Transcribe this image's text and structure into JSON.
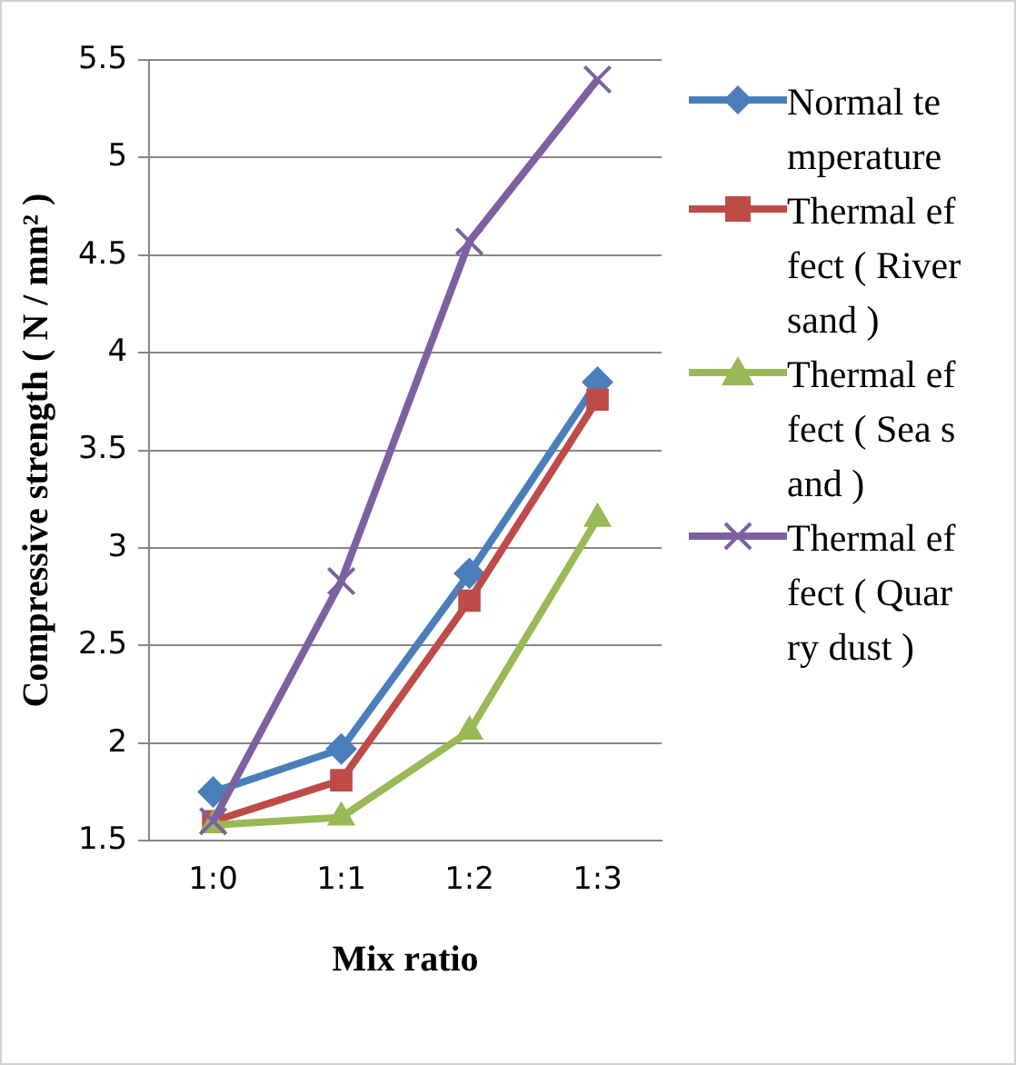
{
  "chart_data": {
    "type": "line",
    "xlabel": "Mix ratio",
    "ylabel": "Compressive strength ( N / mm² )",
    "categories": [
      "1:0",
      "1:1",
      "1:2",
      "1:3"
    ],
    "ylim": [
      1.5,
      5.5
    ],
    "yticks": [
      1.5,
      2,
      2.5,
      3,
      3.5,
      4,
      4.5,
      5,
      5.5
    ],
    "grid": "y",
    "legend": "right",
    "line_style": "solid",
    "series": [
      {
        "name": "Normal temperature",
        "color": "#4a7ebb",
        "marker": "diamond",
        "values": [
          1.75,
          1.97,
          2.87,
          3.85
        ]
      },
      {
        "name": "Thermal effect ( River sand )",
        "color": "#be4b48",
        "marker": "square",
        "values": [
          1.6,
          1.81,
          2.73,
          3.76
        ]
      },
      {
        "name": "Thermal effect ( Sea sand )",
        "color": "#98b954",
        "marker": "triangle",
        "values": [
          1.58,
          1.62,
          2.06,
          3.15
        ]
      },
      {
        "name": "Thermal effect ( Quarry dust )",
        "color": "#7d60a0",
        "marker": "cross",
        "values": [
          1.6,
          2.83,
          4.57,
          5.4
        ]
      }
    ]
  }
}
